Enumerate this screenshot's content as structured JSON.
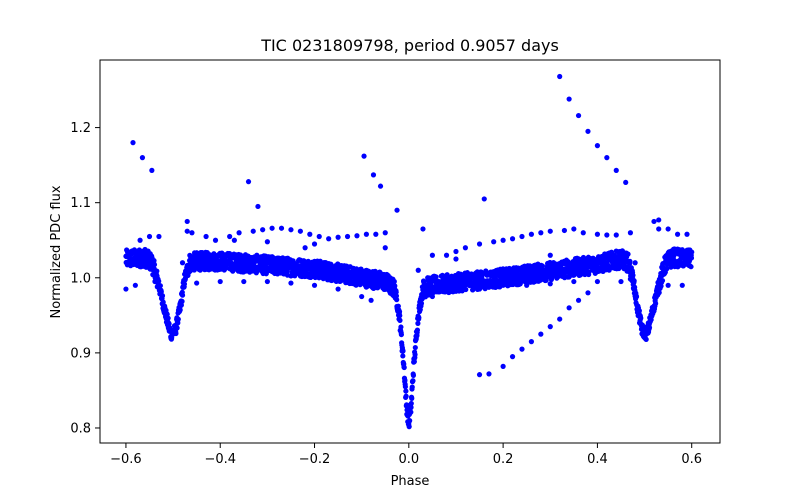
{
  "chart_data": {
    "type": "scatter",
    "title": "TIC 0231809798, period 0.9057 days",
    "xlabel": "Phase",
    "ylabel": "Normalized PDC flux",
    "xlim": [
      -0.655,
      0.66
    ],
    "ylim": [
      0.78,
      1.29
    ],
    "xticks": [
      -0.6,
      -0.4,
      -0.2,
      0.0,
      0.2,
      0.4,
      0.6
    ],
    "xtick_labels": [
      "−0.6",
      "−0.4",
      "−0.2",
      "0.0",
      "0.2",
      "0.4",
      "0.6"
    ],
    "yticks": [
      0.8,
      0.9,
      1.0,
      1.1,
      1.2
    ],
    "ytick_labels": [
      "0.8",
      "0.9",
      "1.0",
      "1.1",
      "1.2"
    ],
    "grid": false,
    "marker_color": "#0000ff",
    "light_curve_knots": {
      "x": [
        -0.6,
        -0.56,
        -0.545,
        -0.53,
        -0.515,
        -0.505,
        -0.495,
        -0.485,
        -0.475,
        -0.465,
        -0.45,
        -0.4,
        -0.2,
        -0.05,
        -0.03,
        -0.02,
        -0.01,
        -0.005,
        0.0,
        0.005,
        0.01,
        0.02,
        0.03,
        0.05,
        0.2,
        0.4,
        0.45,
        0.465,
        0.475,
        0.485,
        0.495,
        0.505,
        0.515,
        0.53,
        0.545,
        0.56,
        0.6
      ],
      "y": [
        1.025,
        1.027,
        1.02,
        0.99,
        0.95,
        0.925,
        0.93,
        0.96,
        1.0,
        1.02,
        1.022,
        1.022,
        1.012,
        0.995,
        0.985,
        0.95,
        0.88,
        0.83,
        0.805,
        0.83,
        0.88,
        0.95,
        0.985,
        0.99,
        1.0,
        1.018,
        1.025,
        1.02,
        1.0,
        0.96,
        0.93,
        0.925,
        0.95,
        0.99,
        1.02,
        1.027,
        1.025
      ]
    },
    "scatter_band_points": {
      "x": [
        -0.57,
        -0.55,
        -0.53,
        -0.46,
        -0.43,
        -0.41,
        -0.38,
        -0.36,
        -0.33,
        -0.31,
        -0.29,
        -0.27,
        -0.25,
        -0.23,
        -0.21,
        -0.19,
        -0.17,
        -0.15,
        -0.13,
        -0.11,
        -0.09,
        -0.07,
        -0.05,
        -0.6,
        -0.58,
        -0.45,
        -0.4,
        -0.35,
        -0.3,
        -0.25,
        -0.2,
        -0.15,
        -0.1,
        -0.08,
        0.03,
        0.05,
        0.08,
        0.1,
        0.12,
        0.15,
        0.18,
        0.2,
        0.22,
        0.24,
        0.26,
        0.28,
        0.3,
        0.33,
        0.35,
        0.37,
        0.4,
        0.42,
        0.44,
        0.47,
        0.52,
        0.55,
        0.57,
        0.59,
        0.05,
        0.1,
        0.15,
        0.2,
        0.25,
        0.3,
        0.35,
        0.4,
        0.45,
        0.55,
        0.58,
        -0.05,
        0.02,
        0.04,
        -0.2,
        -0.3,
        0.1,
        0.3,
        -0.48,
        0.48,
        -0.37,
        -0.22
      ],
      "y": [
        1.05,
        1.055,
        1.055,
        1.06,
        1.055,
        1.05,
        1.055,
        1.06,
        1.062,
        1.064,
        1.066,
        1.066,
        1.064,
        1.062,
        1.058,
        1.055,
        1.052,
        1.054,
        1.055,
        1.056,
        1.058,
        1.058,
        1.06,
        0.985,
        0.99,
        0.993,
        0.995,
        0.995,
        0.995,
        0.993,
        0.99,
        0.985,
        0.975,
        0.97,
        1.065,
        1.03,
        1.03,
        1.035,
        1.04,
        1.045,
        1.048,
        1.05,
        1.052,
        1.055,
        1.058,
        1.06,
        1.062,
        1.063,
        1.065,
        1.06,
        1.058,
        1.057,
        1.057,
        1.06,
        1.075,
        1.065,
        1.058,
        1.058,
        0.975,
        0.982,
        0.985,
        0.99,
        0.99,
        0.992,
        0.995,
        0.995,
        0.995,
        0.99,
        0.99,
        1.04,
        1.01,
        1.0,
        1.045,
        1.048,
        1.025,
        1.03,
        1.02,
        1.02,
        1.05,
        1.04
      ]
    },
    "outlier_points": {
      "x": [
        -0.585,
        -0.565,
        -0.545,
        -0.34,
        -0.32,
        -0.095,
        -0.075,
        -0.06,
        -0.025,
        0.16,
        0.32,
        0.34,
        0.36,
        0.38,
        0.4,
        0.42,
        0.44,
        0.46,
        0.15,
        0.17,
        0.2,
        0.22,
        0.24,
        0.26,
        0.28,
        0.3,
        0.32,
        0.34,
        0.36,
        0.38,
        -0.47,
        -0.47,
        0.53,
        0.53
      ],
      "y": [
        1.18,
        1.16,
        1.143,
        1.128,
        1.095,
        1.162,
        1.137,
        1.122,
        1.09,
        1.105,
        1.268,
        1.238,
        1.216,
        1.195,
        1.176,
        1.16,
        1.143,
        1.127,
        0.871,
        0.872,
        0.882,
        0.895,
        0.905,
        0.915,
        0.925,
        0.935,
        0.945,
        0.96,
        0.97,
        0.98,
        1.075,
        1.062,
        1.077,
        1.065
      ]
    }
  }
}
